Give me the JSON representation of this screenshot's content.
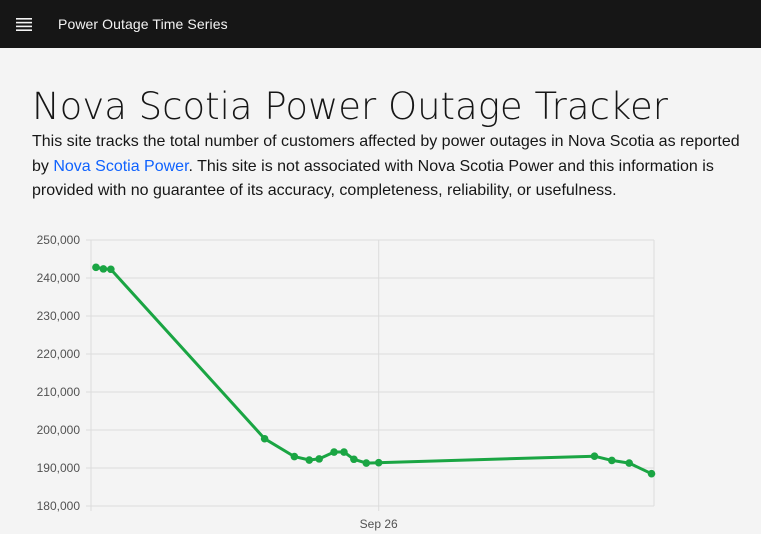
{
  "header": {
    "menu_icon": "hamburger-menu-icon",
    "app_name": "Power Outage Time Series"
  },
  "main": {
    "title": "Nova Scotia Power Outage Tracker",
    "intro_before_link": "This site tracks the total number of customers affected by power outages in Nova Scotia as reported by ",
    "link_text": "Nova Scotia Power",
    "intro_after_link": ". This site is not associated with Nova Scotia Power and this information is provided with no guarantee of its accuracy, completeness, reliability, or usefulness."
  },
  "colors": {
    "header_bg": "#161616",
    "page_bg": "#f4f4f4",
    "link": "#0f62fe",
    "series_line": "#1aa543"
  },
  "chart_data": {
    "type": "line",
    "title": "",
    "xlabel": "",
    "ylabel": "",
    "ylim": [
      180000,
      250000
    ],
    "y_ticks": [
      180000,
      190000,
      200000,
      210000,
      220000,
      230000,
      240000,
      250000
    ],
    "y_tick_labels": [
      "180,000",
      "190,000",
      "200,000",
      "210,000",
      "220,000",
      "230,000",
      "240,000",
      "250,000"
    ],
    "x_tick_label": "Sep 26",
    "grid": true,
    "legend": "none",
    "series": [
      {
        "x": [
          "Sep 24 19:30",
          "Sep 24 20:15",
          "Sep 24 21:00",
          "Sep 25 12:30",
          "Sep 25 15:30",
          "Sep 25 17:00",
          "Sep 25 18:00",
          "Sep 25 19:30",
          "Sep 25 20:30",
          "Sep 25 21:30",
          "Sep 25 22:45",
          "Sep 26 00:00",
          "Sep 26 21:45",
          "Sep 26 23:30",
          "Sep 27 01:15",
          "Sep 27 03:30"
        ],
        "values": [
          242800,
          242400,
          242300,
          197700,
          193000,
          192100,
          192400,
          194200,
          194200,
          192300,
          191300,
          191400,
          193100,
          192000,
          191300,
          188500
        ]
      }
    ]
  }
}
